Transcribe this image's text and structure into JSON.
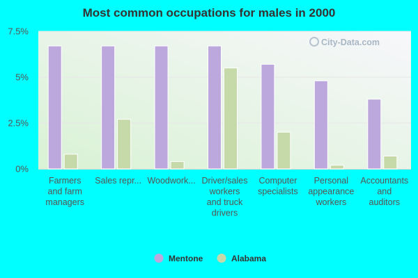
{
  "colors": {
    "background": "#00ffff",
    "mentone": "#bca8dc",
    "alabama": "#c6d9a8",
    "plot_bg_top": "#f7f7fb",
    "plot_bg_bottom": "#d9f2d4"
  },
  "watermark": "City-Data.com",
  "chart_data": {
    "type": "bar",
    "title": "Most common occupations for males in 2000",
    "xlabel": "",
    "ylabel": "",
    "ylim": [
      0,
      7.5
    ],
    "yticks": [
      0,
      2.5,
      5,
      7.5
    ],
    "ytick_labels": [
      "0%",
      "2.5%",
      "5%",
      "7.5%"
    ],
    "grid": true,
    "legend_position": "bottom",
    "categories": [
      [
        "Farmers",
        "and farm",
        "managers"
      ],
      [
        "Sales repr..."
      ],
      [
        "Woodwork..."
      ],
      [
        "Driver/sales",
        "workers",
        "and truck",
        "drivers"
      ],
      [
        "Computer",
        "specialists"
      ],
      [
        "Personal",
        "appearance",
        "workers"
      ],
      [
        "Accountants",
        "and",
        "auditors"
      ]
    ],
    "series": [
      {
        "name": "Mentone",
        "values": [
          6.7,
          6.7,
          6.7,
          6.7,
          5.7,
          4.8,
          3.8
        ]
      },
      {
        "name": "Alabama",
        "values": [
          0.8,
          2.7,
          0.4,
          5.5,
          2.0,
          0.2,
          0.7
        ]
      }
    ]
  }
}
